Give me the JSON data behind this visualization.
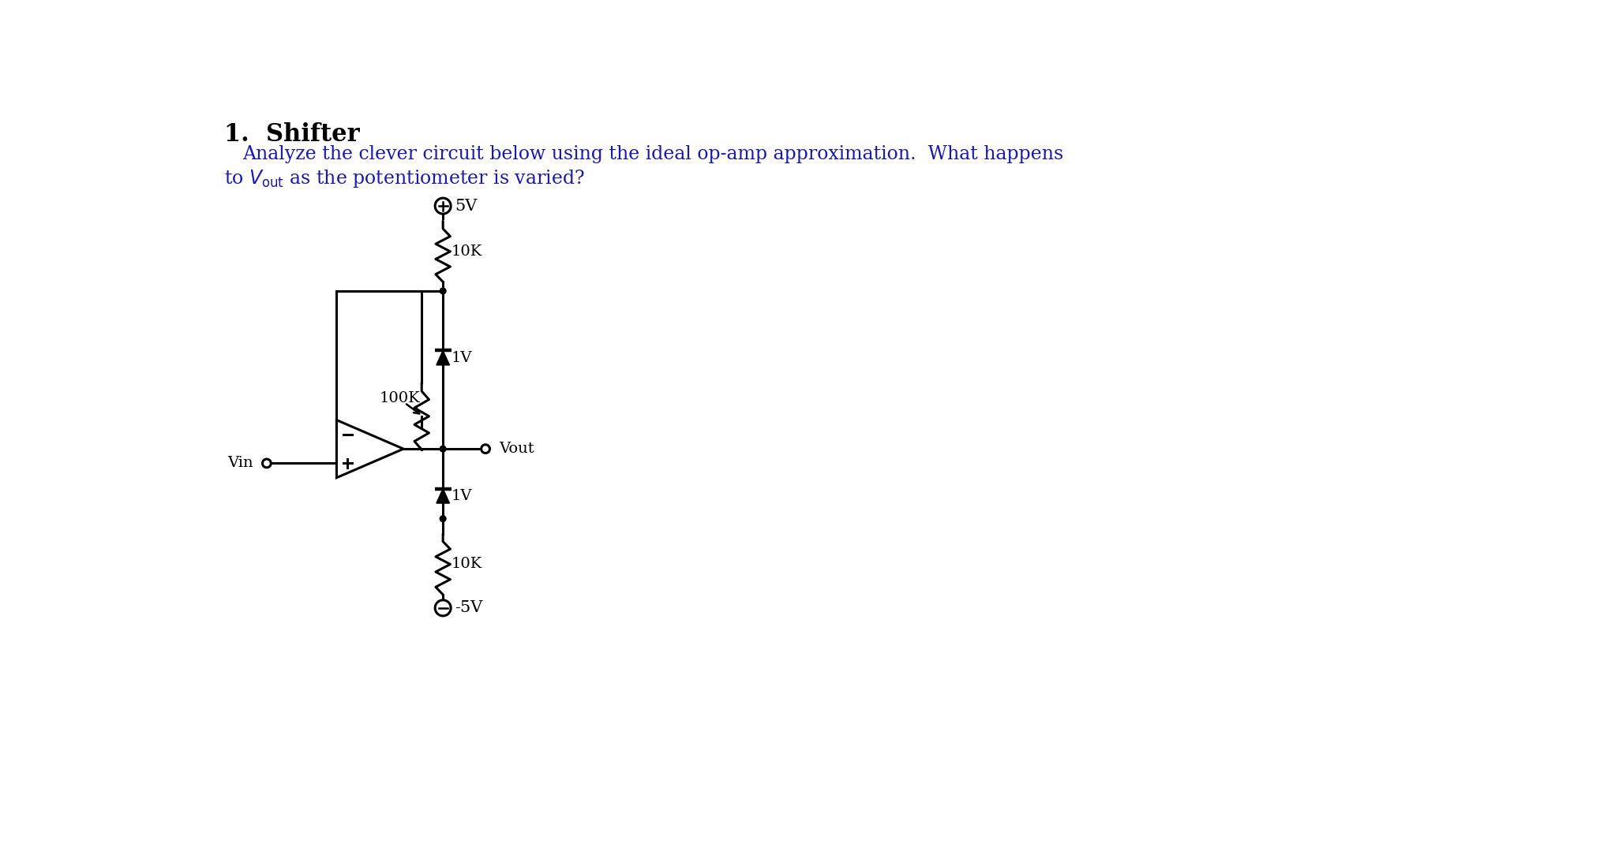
{
  "bg_color": "#ffffff",
  "line_color": "#000000",
  "title": "1.  Shifter",
  "body_line1": "Analyze the clever circuit below using the ideal op-amp approximation.  What happens",
  "body_line2": "to $V_{\\mathrm{out}}$ as the potentiometer is varied?",
  "label_5V": "5V",
  "label_neg5V": "-5V",
  "label_10K_top": "10K",
  "label_10K_bot": "10K",
  "label_100K": "100K",
  "label_1V_top": "1V",
  "label_1V_bot": "1V",
  "label_Vout": "Vout",
  "label_Vin": "Vin"
}
